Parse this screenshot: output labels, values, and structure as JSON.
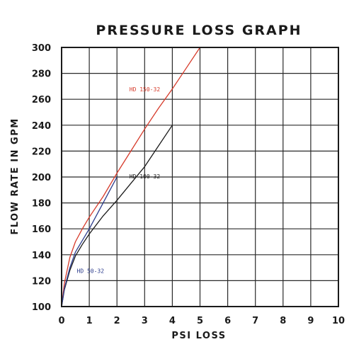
{
  "chart_data": {
    "type": "line",
    "title": "PRESSURE LOSS GRAPH",
    "xlabel": "PSI LOSS",
    "ylabel": "FLOW RATE IN GPM",
    "xlim": [
      0,
      10
    ],
    "ylim": [
      100,
      300
    ],
    "xticks": [
      "0",
      "1",
      "2",
      "3",
      "4",
      "5",
      "6",
      "7",
      "8",
      "9",
      "10"
    ],
    "yticks": [
      "100",
      "120",
      "140",
      "160",
      "180",
      "200",
      "220",
      "240",
      "260",
      "280",
      "300"
    ],
    "grid": true,
    "series": [
      {
        "name": "HD 150-32",
        "color": "#d63a2a",
        "label_at": [
          2.45,
          266
        ],
        "points": [
          [
            0,
            100
          ],
          [
            0.1,
            118
          ],
          [
            0.3,
            138
          ],
          [
            0.5,
            150
          ],
          [
            0.75,
            160
          ],
          [
            1.0,
            169
          ],
          [
            1.5,
            185
          ],
          [
            2.0,
            203
          ],
          [
            2.5,
            220
          ],
          [
            3.0,
            237
          ],
          [
            3.5,
            253
          ],
          [
            4.0,
            268
          ],
          [
            4.5,
            284
          ],
          [
            5.0,
            300
          ]
        ]
      },
      {
        "name": "HD 100-32",
        "color": "#1a1a1a",
        "label_at": [
          2.45,
          199
        ],
        "points": [
          [
            0,
            100
          ],
          [
            0.1,
            113
          ],
          [
            0.3,
            128
          ],
          [
            0.5,
            139
          ],
          [
            0.75,
            148
          ],
          [
            1.0,
            156
          ],
          [
            1.5,
            170
          ],
          [
            2.0,
            182
          ],
          [
            2.5,
            195
          ],
          [
            3.0,
            208
          ],
          [
            3.5,
            224
          ],
          [
            4.0,
            240
          ]
        ]
      },
      {
        "name": "HD 50-32",
        "color": "#2c3c8c",
        "label_at": [
          0.55,
          126
        ],
        "points": [
          [
            0,
            100
          ],
          [
            0.1,
            114
          ],
          [
            0.3,
            130
          ],
          [
            0.5,
            142
          ],
          [
            0.75,
            151
          ],
          [
            1.0,
            160
          ],
          [
            1.5,
            180
          ],
          [
            2.0,
            200
          ]
        ]
      }
    ]
  }
}
